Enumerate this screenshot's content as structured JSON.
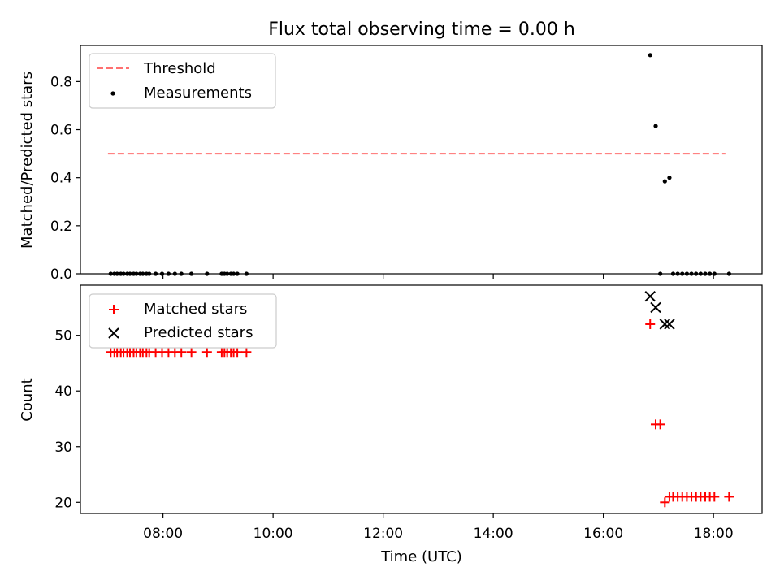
{
  "figure": {
    "title": "Flux total observing time = 0.00 h",
    "xlabel": "Time (UTC)",
    "xticks": [
      "08:00",
      "10:00",
      "12:00",
      "14:00",
      "16:00",
      "18:00"
    ]
  },
  "chart_data": [
    {
      "type": "scatter",
      "ylabel": "Matched/Predicted stars",
      "xlim": [
        "06:30",
        "18:53"
      ],
      "ylim": [
        0,
        0.95
      ],
      "yticks": [
        "0.0",
        "0.2",
        "0.4",
        "0.6",
        "0.8"
      ],
      "legend_position": "upper-left",
      "threshold": {
        "name": "Threshold",
        "value": 0.5,
        "x_start": "07:00",
        "x_end": "18:13",
        "color": "#ff7070"
      },
      "series": [
        {
          "name": "Measurements",
          "color": "#000000",
          "x": [
            "07:03",
            "07:07",
            "07:10",
            "07:14",
            "07:17",
            "07:21",
            "07:24",
            "07:28",
            "07:31",
            "07:35",
            "07:38",
            "07:42",
            "07:45",
            "07:52",
            "07:59",
            "08:06",
            "08:13",
            "08:20",
            "08:31",
            "08:48",
            "09:04",
            "09:07",
            "09:10",
            "09:14",
            "09:17",
            "09:21",
            "09:31",
            "16:51",
            "16:57",
            "17:02",
            "17:07",
            "17:12",
            "17:16",
            "17:21",
            "17:26",
            "17:31",
            "17:36",
            "17:41",
            "17:46",
            "17:51",
            "17:56",
            "18:01",
            "18:17"
          ],
          "y": [
            0,
            0,
            0,
            0,
            0,
            0,
            0,
            0,
            0,
            0,
            0,
            0,
            0,
            0,
            0,
            0,
            0,
            0,
            0,
            0,
            0,
            0,
            0,
            0,
            0,
            0,
            0,
            0.91,
            0.615,
            0,
            0.385,
            0.4,
            0,
            0,
            0,
            0,
            0,
            0,
            0,
            0,
            0,
            0,
            0
          ]
        }
      ]
    },
    {
      "type": "scatter",
      "ylabel": "Count",
      "xlim": [
        "06:30",
        "18:53"
      ],
      "ylim": [
        18,
        59
      ],
      "yticks": [
        "20",
        "30",
        "40",
        "50"
      ],
      "legend_position": "upper-left",
      "series": [
        {
          "name": "Matched stars",
          "marker": "+",
          "color": "#ff0000",
          "x": [
            "07:03",
            "07:07",
            "07:10",
            "07:14",
            "07:17",
            "07:21",
            "07:24",
            "07:28",
            "07:31",
            "07:35",
            "07:38",
            "07:42",
            "07:45",
            "07:52",
            "07:59",
            "08:06",
            "08:13",
            "08:20",
            "08:31",
            "08:48",
            "09:04",
            "09:07",
            "09:10",
            "09:14",
            "09:17",
            "09:21",
            "09:31",
            "16:51",
            "16:57",
            "17:02",
            "17:07",
            "17:12",
            "17:16",
            "17:21",
            "17:26",
            "17:31",
            "17:36",
            "17:41",
            "17:46",
            "17:51",
            "17:56",
            "18:01",
            "18:17"
          ],
          "y": [
            47,
            47,
            47,
            47,
            47,
            47,
            47,
            47,
            47,
            47,
            47,
            47,
            47,
            47,
            47,
            47,
            47,
            47,
            47,
            47,
            47,
            47,
            47,
            47,
            47,
            47,
            47,
            52,
            34,
            34,
            20,
            21,
            21,
            21,
            21,
            21,
            21,
            21,
            21,
            21,
            21,
            21,
            21
          ]
        },
        {
          "name": "Predicted stars",
          "marker": "x",
          "color": "#000000",
          "x": [
            "16:51",
            "16:57",
            "17:07",
            "17:12"
          ],
          "y": [
            57,
            55,
            52,
            52
          ]
        }
      ]
    }
  ]
}
